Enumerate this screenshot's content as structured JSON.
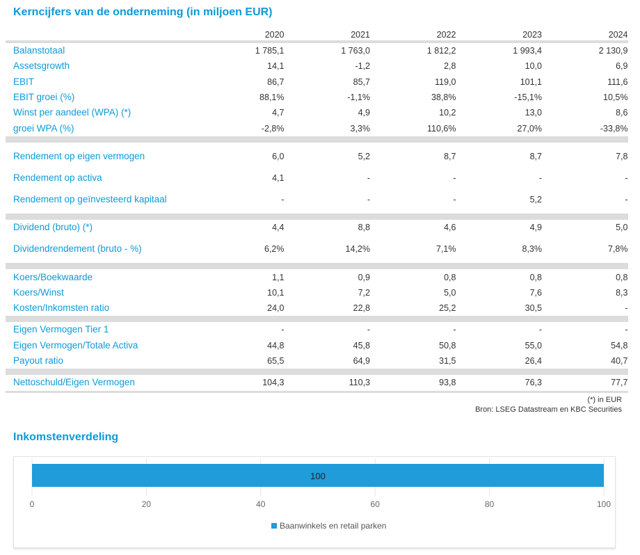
{
  "title": "Kerncijfers van de onderneming (in miljoen EUR)",
  "years": [
    "2020",
    "2021",
    "2022",
    "2023",
    "2024"
  ],
  "groups": [
    [
      {
        "label": "Balanstotaal",
        "values": [
          "1 785,1",
          "1 763,0",
          "1 812,2",
          "1 993,4",
          "2 130,9"
        ]
      },
      {
        "label": "Assetsgrowth",
        "values": [
          "14,1",
          "-1,2",
          "2,8",
          "10,0",
          "6,9"
        ]
      },
      {
        "label": "EBIT",
        "values": [
          "86,7",
          "85,7",
          "119,0",
          "101,1",
          "111,6"
        ]
      },
      {
        "label": "EBIT groei (%)",
        "values": [
          "88,1%",
          "-1,1%",
          "38,8%",
          "-15,1%",
          "10,5%"
        ]
      },
      {
        "label": "Winst per aandeel (WPA) (*)",
        "values": [
          "4,7",
          "4,9",
          "10,2",
          "13,0",
          "8,6"
        ]
      },
      {
        "label": "groei WPA (%)",
        "values": [
          "-2,8%",
          "3,3%",
          "110,6%",
          "27,0%",
          "-33,8%"
        ]
      }
    ],
    [
      {
        "label": "Rendement op eigen vermogen",
        "two": true,
        "values": [
          "6,0",
          "5,2",
          "8,7",
          "8,7",
          "7,8"
        ]
      },
      {
        "label": "Rendement op activa",
        "values": [
          "4,1",
          "-",
          "-",
          "-",
          "-"
        ]
      },
      {
        "label": "Rendement op geïnvesteerd kapitaal",
        "two": true,
        "values": [
          "-",
          "-",
          "-",
          "5,2",
          "-"
        ]
      }
    ],
    [
      {
        "label": "Dividend (bruto) (*)",
        "values": [
          "4,4",
          "8,8",
          "4,6",
          "4,9",
          "5,0"
        ]
      },
      {
        "label": "Dividendrendement (bruto - %)",
        "two": true,
        "values": [
          "6,2%",
          "14,2%",
          "7,1%",
          "8,3%",
          "7,8%"
        ]
      }
    ],
    [
      {
        "label": "Koers/Boekwaarde",
        "values": [
          "1,1",
          "0,9",
          "0,8",
          "0,8",
          "0,8"
        ]
      },
      {
        "label": "Koers/Winst",
        "values": [
          "10,1",
          "7,2",
          "5,0",
          "7,6",
          "8,3"
        ]
      },
      {
        "label": "Kosten/Inkomsten ratio",
        "values": [
          "24,0",
          "22,8",
          "25,2",
          "30,5",
          "-"
        ]
      }
    ],
    [
      {
        "label": "Eigen Vermogen Tier 1",
        "values": [
          "-",
          "-",
          "-",
          "-",
          "-"
        ]
      },
      {
        "label": "Eigen Vermogen/Totale Activa",
        "values": [
          "44,8",
          "45,8",
          "50,8",
          "55,0",
          "54,8"
        ]
      },
      {
        "label": "Payout ratio",
        "values": [
          "65,5",
          "64,9",
          "31,5",
          "26,4",
          "40,7"
        ]
      }
    ],
    [
      {
        "label": "Nettoschuld/Eigen Vermogen",
        "values": [
          "104,3",
          "110,3",
          "93,8",
          "76,3",
          "77,7"
        ]
      }
    ]
  ],
  "footnote": "(*) in EUR",
  "source": "Bron: LSEG Datastream en KBC Securities",
  "chart_data": {
    "type": "bar",
    "orientation": "horizontal",
    "title": "Inkomstenverdeling",
    "categories": [
      "Baanwinkels en retail parken"
    ],
    "series": [
      {
        "name": "Baanwinkels en retail parken",
        "values": [
          100
        ],
        "color": "#1f9cd9"
      }
    ],
    "data_labels": [
      "100"
    ],
    "xlim": [
      0,
      100
    ],
    "xticks": [
      "0",
      "20",
      "40",
      "60",
      "80",
      "100"
    ],
    "grid": true,
    "legend": "bottom"
  }
}
